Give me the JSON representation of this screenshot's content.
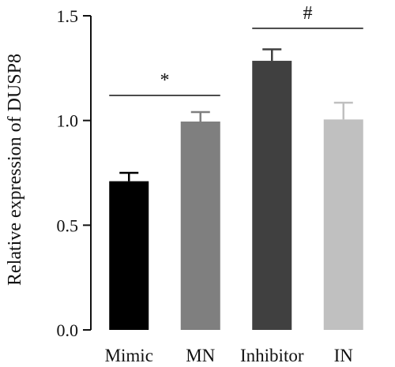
{
  "chart_data": {
    "type": "bar",
    "categories": [
      "Mimic",
      "MN",
      "Inhibitor",
      "IN"
    ],
    "values": [
      0.71,
      0.995,
      1.285,
      1.005
    ],
    "errors": [
      0.04,
      0.045,
      0.055,
      0.08
    ],
    "colors": [
      "#000000",
      "#7f7f7f",
      "#404040",
      "#c0c0c0"
    ],
    "ylabel": "Relative expression of DUSP8",
    "ylim": [
      0,
      1.5
    ],
    "yticks": [
      "0.0",
      "0.5",
      "1.0",
      "1.5"
    ],
    "significance": [
      {
        "from": 0,
        "to": 1,
        "label": "*",
        "level": 1.12
      },
      {
        "from": 2,
        "to": 3,
        "label": "#",
        "level": 1.44
      }
    ]
  }
}
